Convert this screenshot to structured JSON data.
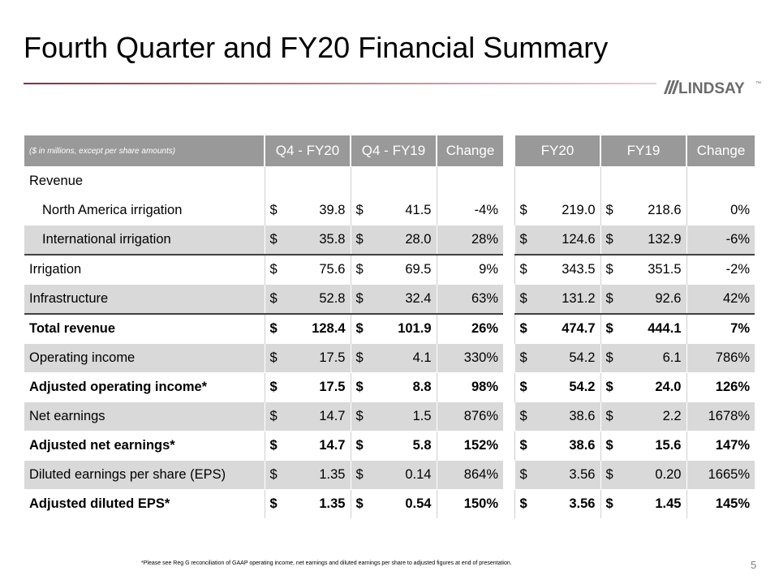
{
  "title": "Fourth Quarter and FY20 Financial Summary",
  "logo": {
    "text": "LINDSAY",
    "trademark": "™"
  },
  "table": {
    "header_note": "($ in millions, except per share amounts)",
    "columns": [
      "Q4 - FY20",
      "Q4 - FY19",
      "Change",
      "FY20",
      "FY19",
      "Change"
    ],
    "rows": [
      {
        "label": "Revenue",
        "currency": [
          "",
          "",
          "",
          ""
        ],
        "values": [
          "",
          "",
          "",
          "",
          "",
          ""
        ]
      },
      {
        "label": "North America irrigation",
        "currency": [
          "$",
          "$",
          "$",
          "$"
        ],
        "values": [
          "39.8",
          "41.5",
          "-4%",
          "219.0",
          "218.6",
          "0%"
        ]
      },
      {
        "label": "International irrigation",
        "currency": [
          "$",
          "$",
          "$",
          "$"
        ],
        "values": [
          "35.8",
          "28.0",
          "28%",
          "124.6",
          "132.9",
          "-6%"
        ]
      },
      {
        "label": "Irrigation",
        "currency": [
          "$",
          "$",
          "$",
          "$"
        ],
        "values": [
          "75.6",
          "69.5",
          "9%",
          "343.5",
          "351.5",
          "-2%"
        ]
      },
      {
        "label": "Infrastructure",
        "currency": [
          "$",
          "$",
          "$",
          "$"
        ],
        "values": [
          "52.8",
          "32.4",
          "63%",
          "131.2",
          "92.6",
          "42%"
        ]
      },
      {
        "label": "Total revenue",
        "currency": [
          "$",
          "$",
          "$",
          "$"
        ],
        "values": [
          "128.4",
          "101.9",
          "26%",
          "474.7",
          "444.1",
          "7%"
        ]
      },
      {
        "label": "Operating income",
        "currency": [
          "$",
          "$",
          "$",
          "$"
        ],
        "values": [
          "17.5",
          "4.1",
          "330%",
          "54.2",
          "6.1",
          "786%"
        ]
      },
      {
        "label": "Adjusted operating income*",
        "currency": [
          "$",
          "$",
          "$",
          "$"
        ],
        "values": [
          "17.5",
          "8.8",
          "98%",
          "54.2",
          "24.0",
          "126%"
        ]
      },
      {
        "label": "Net earnings",
        "currency": [
          "$",
          "$",
          "$",
          "$"
        ],
        "values": [
          "14.7",
          "1.5",
          "876%",
          "38.6",
          "2.2",
          "1678%"
        ]
      },
      {
        "label": "Adjusted net earnings*",
        "currency": [
          "$",
          "$",
          "$",
          "$"
        ],
        "values": [
          "14.7",
          "5.8",
          "152%",
          "38.6",
          "15.6",
          "147%"
        ]
      },
      {
        "label": "Diluted earnings per share (EPS)",
        "currency": [
          "$",
          "$",
          "$",
          "$"
        ],
        "values": [
          "1.35",
          "0.14",
          "864%",
          "3.56",
          "0.20",
          "1665%"
        ]
      },
      {
        "label": "Adjusted diluted EPS*",
        "currency": [
          "$",
          "$",
          "$",
          "$"
        ],
        "values": [
          "1.35",
          "0.54",
          "150%",
          "3.56",
          "1.45",
          "145%"
        ]
      }
    ]
  },
  "footnote": "*Please see Reg G reconciliation of GAAP operating income, net earnings and diluted earnings per share to adjusted figures at end of presentation.",
  "page_number": "5",
  "colors": {
    "accent": "#8e2a3e",
    "header_bg": "#999999",
    "shade_bg": "#d9d9d9",
    "logo": "#6b6b6b"
  }
}
